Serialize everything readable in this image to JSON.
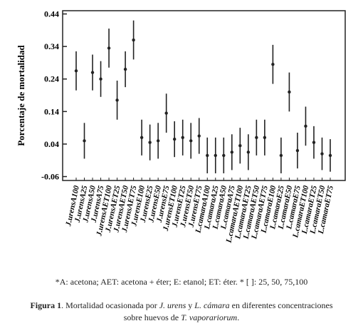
{
  "chart_data": {
    "type": "errorbar",
    "y_label": "Porcentaje de mortalidad",
    "categories": [
      "J.urensA100",
      "J.urensA25",
      "J.urensA50",
      "J.urensA75",
      "J.urensAET100",
      "J.urensAET25",
      "J.urensAET50",
      "J.urensAET75",
      "J.urensE100",
      "J.urensE25",
      "J.urensE50",
      "J.urensE75",
      "J.urensET100",
      "J.urensET25",
      "J.urensET50",
      "J.urensET75",
      "L.camaraA100",
      "L.camaraA25",
      "L.camaraA50",
      "L.camaraA75",
      "L.camaraAET100",
      "L.camaraAET25",
      "L.camaraAET50",
      "L.camaraAET75",
      "L.camaraE100",
      "L.camaraE25",
      "L.camaraE50",
      "L.camaraE75",
      "L.camaraET100",
      "L.camaraET25",
      "L.camaraET50",
      "L.camaraET75"
    ],
    "values": [
      0.265,
      0.05,
      0.26,
      0.24,
      0.335,
      0.175,
      0.27,
      0.36,
      0.06,
      0.045,
      0.05,
      0.135,
      0.055,
      0.06,
      0.05,
      0.065,
      0.005,
      0.005,
      0.005,
      0.015,
      0.035,
      0.015,
      0.06,
      0.06,
      0.285,
      0.005,
      0.2,
      0.02,
      0.095,
      0.045,
      0.01,
      0.005
    ],
    "errors": [
      0.06,
      0.055,
      0.055,
      0.055,
      0.06,
      0.06,
      0.055,
      0.06,
      0.055,
      0.055,
      0.055,
      0.06,
      0.055,
      0.055,
      0.055,
      0.055,
      0.055,
      0.055,
      0.055,
      0.055,
      0.055,
      0.055,
      0.055,
      0.055,
      0.06,
      0.055,
      0.06,
      0.055,
      0.06,
      0.05,
      0.05,
      0.05
    ],
    "color": "#222222",
    "ylim": [
      -0.072,
      0.45
    ],
    "yticks": [
      -0.06,
      0.04,
      0.14,
      0.24,
      0.34,
      0.44
    ]
  },
  "notes": "*A: acetona; AET: acetona + éter; E: etanol; ET: éter. * [ ]: 25, 50, 75,100",
  "caption": [
    "Figura 1",
    ". Mortalidad ocasionada por ",
    "J. urens",
    " y ",
    "L. cámara",
    " en diferentes concentraciones sobre huevos de ",
    "T. vaporariorum",
    "."
  ]
}
